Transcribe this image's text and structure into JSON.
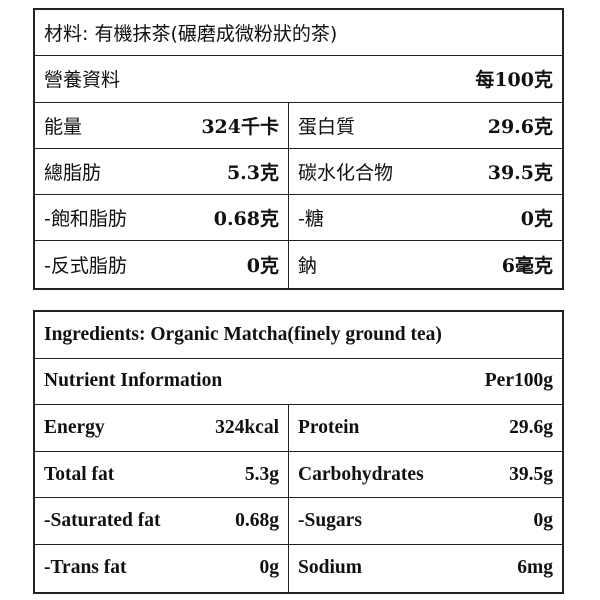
{
  "chinese": {
    "ingredients": "材料: 有機抹茶(碾磨成微粉狀的茶)",
    "header_label": "營養資料",
    "header_unit": "每100克",
    "rows": [
      {
        "left_label": "能量",
        "left_value": "324千卡",
        "right_label": "蛋白質",
        "right_value": "29.6克"
      },
      {
        "left_label": "總脂肪",
        "left_value": "5.3克",
        "right_label": "碳水化合物",
        "right_value": "39.5克"
      },
      {
        "left_label": "-飽和脂肪",
        "left_value": "0.68克",
        "right_label": "-糖",
        "right_value": "0克"
      },
      {
        "left_label": "-反式脂肪",
        "left_value": "0克",
        "right_label": "鈉",
        "right_value": "6毫克"
      }
    ]
  },
  "english": {
    "ingredients": "Ingredients: Organic Matcha(finely ground tea)",
    "header_label": "Nutrient Information",
    "header_unit": "Per100g",
    "rows": [
      {
        "left_label": "Energy",
        "left_value": "324kcal",
        "right_label": "Protein",
        "right_value": "29.6g"
      },
      {
        "left_label": "Total fat",
        "left_value": "5.3g",
        "right_label": "Carbohydrates",
        "right_value": "39.5g"
      },
      {
        "left_label": "-Saturated fat",
        "left_value": "0.68g",
        "right_label": "-Sugars",
        "right_value": "0g"
      },
      {
        "left_label": "-Trans fat",
        "left_value": "0g",
        "right_label": "Sodium",
        "right_value": "6mg"
      }
    ]
  }
}
